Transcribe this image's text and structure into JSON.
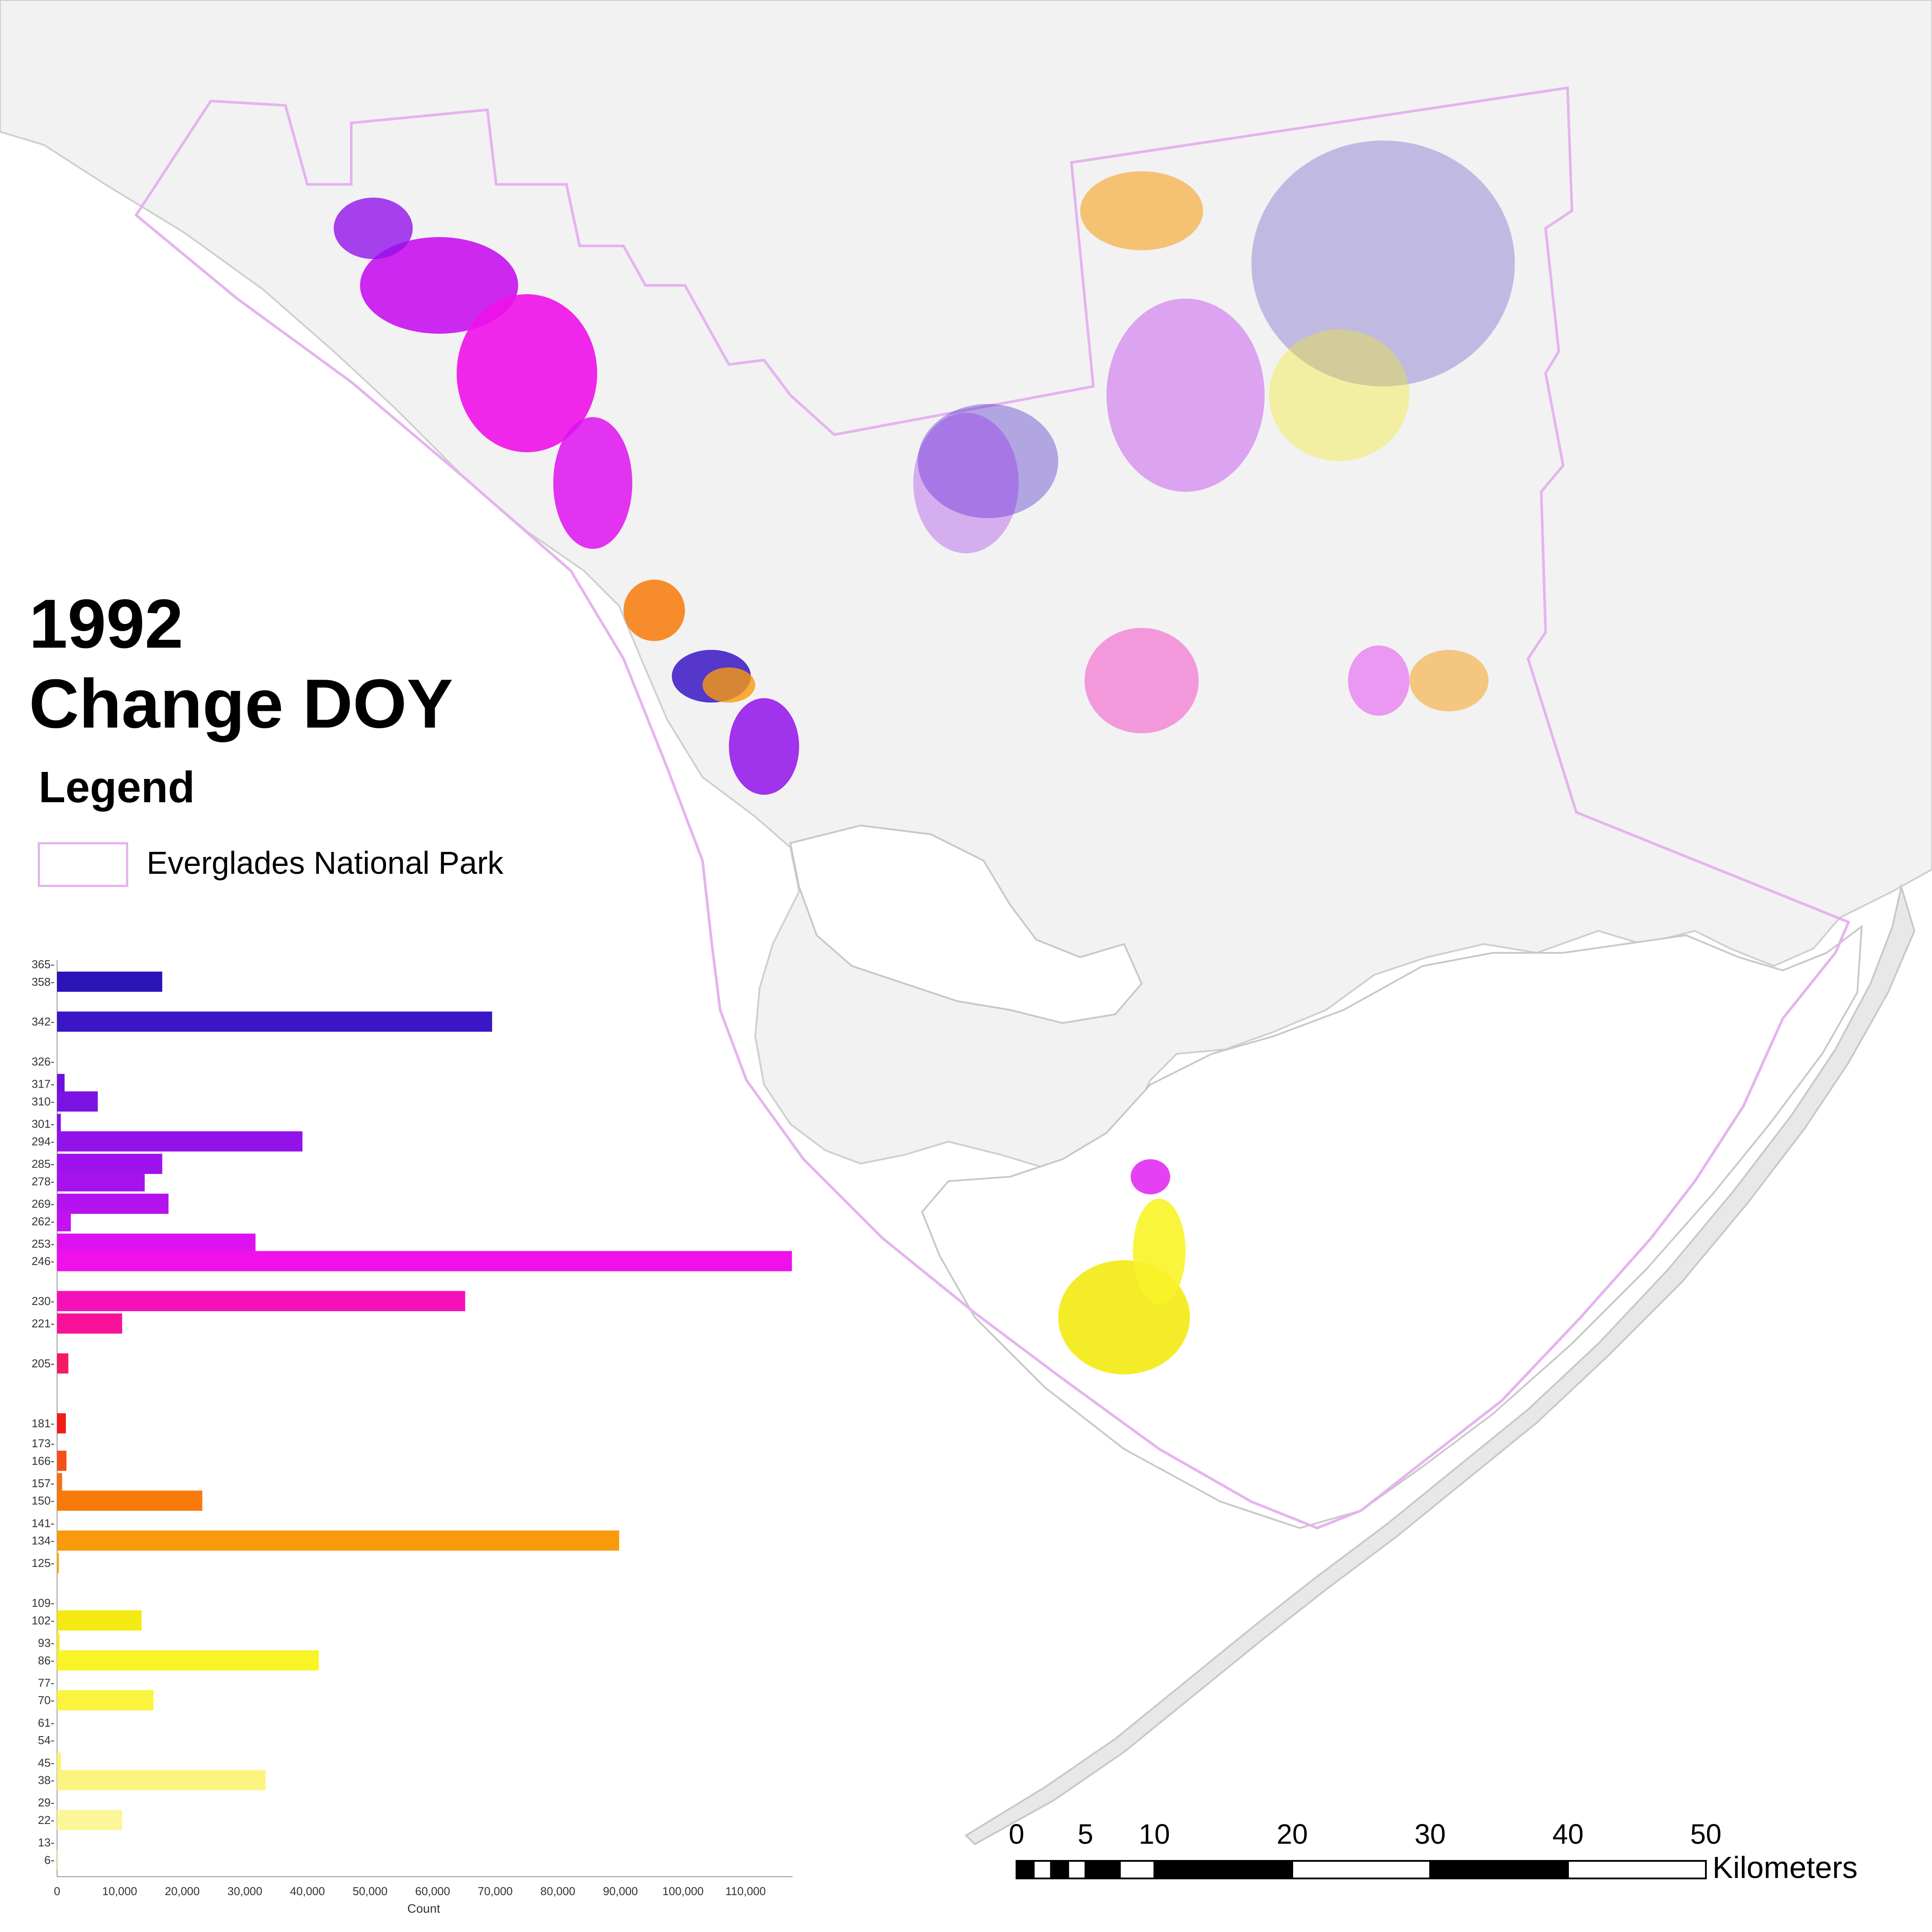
{
  "map": {
    "title_year": "1992",
    "title_subject": "Change DOY",
    "legend": {
      "heading": "Legend",
      "items": [
        {
          "label": "Everglades National Park",
          "swatch": "park-boundary-outline",
          "outline_color": "#e6b3ef"
        }
      ]
    },
    "colors": {
      "land": "#f2f2f2",
      "water": "#ffffff",
      "coast_outline": "#c8c8c8",
      "park_boundary": "#e6b3ef"
    },
    "scale_bar": {
      "unit": "Kilometers",
      "ticks": [
        0,
        5,
        10,
        20,
        30,
        40,
        50
      ]
    }
  },
  "chart_data": {
    "type": "bar",
    "orientation": "horizontal",
    "xlabel": "Count",
    "xlim": [
      0,
      117500
    ],
    "x_ticks": [
      0,
      10000,
      20000,
      30000,
      40000,
      50000,
      60000,
      70000,
      80000,
      90000,
      100000,
      110000
    ],
    "x_tick_labels": [
      "0",
      "10,000",
      "20,000",
      "30,000",
      "40,000",
      "50,000",
      "60,000",
      "70,000",
      "80,000",
      "90,000",
      "100,000",
      "110,000"
    ],
    "y_tick_labels": [
      "365",
      "358",
      "342",
      "326",
      "317",
      "310",
      "301",
      "294",
      "285",
      "278",
      "269",
      "262",
      "253",
      "246",
      "230",
      "221",
      "205",
      "181",
      "173",
      "166",
      "157",
      "150",
      "141",
      "134",
      "125",
      "109",
      "102",
      "93",
      "86",
      "77",
      "70",
      "61",
      "54",
      "45",
      "38",
      "29",
      "22",
      "13",
      "6"
    ],
    "bars": [
      {
        "doy": 358,
        "value": 16800,
        "color": "#2a14b8"
      },
      {
        "doy": 342,
        "value": 69500,
        "color": "#3a16c6"
      },
      {
        "doy": 317,
        "value": 1200,
        "color": "#6a12dc"
      },
      {
        "doy": 310,
        "value": 6500,
        "color": "#7a12e2"
      },
      {
        "doy": 301,
        "value": 600,
        "color": "#8412e6"
      },
      {
        "doy": 294,
        "value": 39200,
        "color": "#9212ea"
      },
      {
        "doy": 285,
        "value": 16800,
        "color": "#9e12ee"
      },
      {
        "doy": 278,
        "value": 14000,
        "color": "#a612ee"
      },
      {
        "doy": 269,
        "value": 17800,
        "color": "#b412ee"
      },
      {
        "doy": 262,
        "value": 2200,
        "color": "#c212f0"
      },
      {
        "doy": 253,
        "value": 31700,
        "color": "#de12f0"
      },
      {
        "doy": 246,
        "value": 117400,
        "color": "#f010ea"
      },
      {
        "doy": 230,
        "value": 65200,
        "color": "#f412b8"
      },
      {
        "doy": 221,
        "value": 10400,
        "color": "#f8129a"
      },
      {
        "doy": 205,
        "value": 1800,
        "color": "#f51a66"
      },
      {
        "doy": 181,
        "value": 1400,
        "color": "#f01c14"
      },
      {
        "doy": 166,
        "value": 1500,
        "color": "#f4501a"
      },
      {
        "doy": 157,
        "value": 800,
        "color": "#f67010"
      },
      {
        "doy": 150,
        "value": 23200,
        "color": "#f87a0a"
      },
      {
        "doy": 134,
        "value": 89800,
        "color": "#f89a0c"
      },
      {
        "doy": 125,
        "value": 300,
        "color": "#f8b010"
      },
      {
        "doy": 102,
        "value": 13500,
        "color": "#f4ea12"
      },
      {
        "doy": 93,
        "value": 400,
        "color": "#f6f020"
      },
      {
        "doy": 86,
        "value": 41800,
        "color": "#f8f428"
      },
      {
        "doy": 70,
        "value": 15400,
        "color": "#faf440"
      },
      {
        "doy": 45,
        "value": 600,
        "color": "#fcf468"
      },
      {
        "doy": 38,
        "value": 33300,
        "color": "#fcf480"
      },
      {
        "doy": 22,
        "value": 10400,
        "color": "#fdf59a"
      },
      {
        "doy": 6,
        "value": 200,
        "color": "#fdf6b0"
      }
    ]
  }
}
